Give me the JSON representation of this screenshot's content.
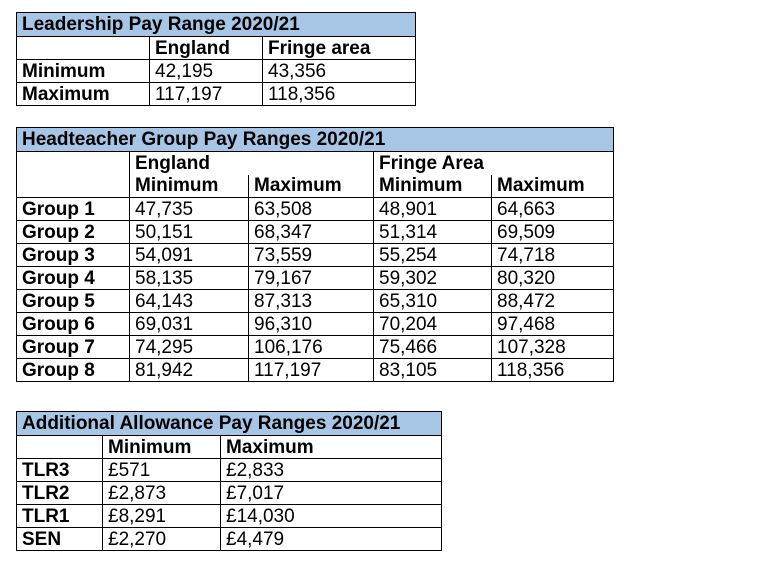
{
  "leadership": {
    "title": "Leadership Pay Range 2020/21",
    "headers": [
      "",
      "England",
      "Fringe area"
    ],
    "rows": [
      {
        "label": "Minimum",
        "england": "42,195",
        "fringe": "43,356"
      },
      {
        "label": "Maximum",
        "england": "117,197",
        "fringe": "118,356"
      }
    ]
  },
  "headteacher": {
    "title": "Headteacher Group Pay Ranges 2020/21",
    "group_headers": [
      "England",
      "Fringe Area"
    ],
    "sub_headers": [
      "Minimum",
      "Maximum",
      "Minimum",
      "Maximum"
    ],
    "rows": [
      {
        "label": "Group 1",
        "eng_min": "47,735",
        "eng_max": "63,508",
        "fr_min": "48,901",
        "fr_max": "64,663"
      },
      {
        "label": "Group 2",
        "eng_min": "50,151",
        "eng_max": "68,347",
        "fr_min": "51,314",
        "fr_max": "69,509"
      },
      {
        "label": "Group 3",
        "eng_min": "54,091",
        "eng_max": "73,559",
        "fr_min": "55,254",
        "fr_max": "74,718"
      },
      {
        "label": "Group 4",
        "eng_min": "58,135",
        "eng_max": "79,167",
        "fr_min": "59,302",
        "fr_max": "80,320"
      },
      {
        "label": "Group 5",
        "eng_min": "64,143",
        "eng_max": "87,313",
        "fr_min": "65,310",
        "fr_max": "88,472"
      },
      {
        "label": "Group 6",
        "eng_min": "69,031",
        "eng_max": "96,310",
        "fr_min": "70,204",
        "fr_max": "97,468"
      },
      {
        "label": "Group 7",
        "eng_min": "74,295",
        "eng_max": "106,176",
        "fr_min": "75,466",
        "fr_max": "107,328"
      },
      {
        "label": "Group 8",
        "eng_min": "81,942",
        "eng_max": "117,197",
        "fr_min": "83,105",
        "fr_max": "118,356"
      }
    ]
  },
  "allowance": {
    "title": "Additional Allowance Pay Ranges 2020/21",
    "headers": [
      "",
      "Minimum",
      "Maximum"
    ],
    "rows": [
      {
        "label": "TLR3",
        "min": "£571",
        "max": "£2,833"
      },
      {
        "label": "TLR2",
        "min": "£2,873",
        "max": "£7,017"
      },
      {
        "label": "TLR1",
        "min": "£8,291",
        "max": "£14,030"
      },
      {
        "label": "SEN",
        "min": "£2,270",
        "max": "£4,479"
      }
    ]
  }
}
